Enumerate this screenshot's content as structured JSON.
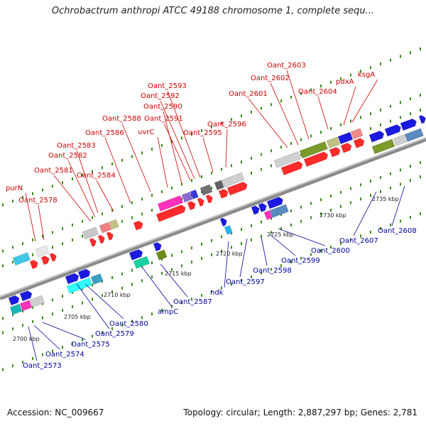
{
  "title": "Ochrobactrum anthropi ATCC 49188 chromosome 1, complete sequ...",
  "footer": {
    "accession": "Accession: NC_009667",
    "summary": "Topology: circular; Length: 2,887,297 bp; Genes: 2,781"
  },
  "colors": {
    "label_top": "#cc0000",
    "label_bottom": "#000099",
    "backbone": "#8a8a8a",
    "tick": "#3a8a1a"
  },
  "scale_labels": [
    "2700 kbp",
    "2705 kbp",
    "2710 kbp",
    "2715 kbp",
    "2720 kbp",
    "2725 kbp",
    "2730 kbp",
    "2735 kbp"
  ],
  "top_labels": [
    "purN",
    "Oant_2578",
    "Oant_2581",
    "Oant_2582",
    "Oant_2583",
    "Oant_2584",
    "Oant_2586",
    "Oant_2588",
    "uvrC",
    "Oant_2590",
    "Oant_2591",
    "Oant_2592",
    "Oant_2593",
    "Oant_2595",
    "Oant_2596",
    "Oant_2601",
    "Oant_2602",
    "Oant_2603",
    "Oant_2604",
    "pdxA",
    "ksgA"
  ],
  "bottom_labels": [
    "Oant_2573",
    "Oant_2574",
    "Oant_2575",
    "Oant_2579",
    "Oant_2580",
    "ampC",
    "Oant_2587",
    "ndk",
    "Oant_2597",
    "Oant_2598",
    "Oant_2599",
    "Oant_2600",
    "Oant_2607",
    "Oant_2608"
  ]
}
